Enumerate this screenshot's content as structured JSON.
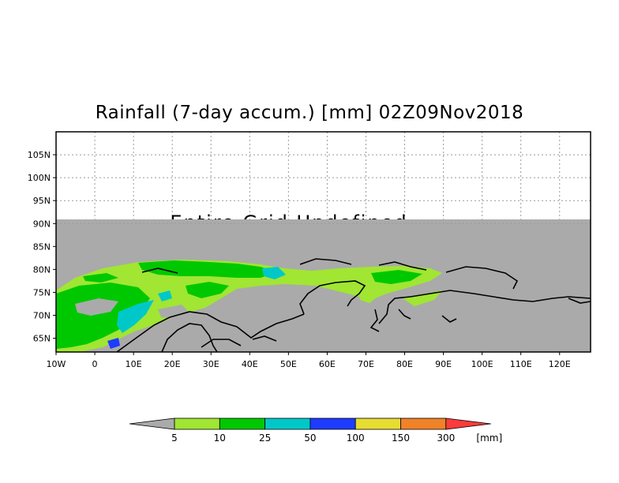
{
  "title": "Rainfall (7-day accum.) [mm] 02Z09Nov2018",
  "overlay_text": "Entire Grid Undefined",
  "map": {
    "lon_range": [
      -10,
      128
    ],
    "lat_range": [
      62,
      110
    ],
    "undefined_above_lat": 90,
    "lon_ticks": [
      "10W",
      "0",
      "10E",
      "20E",
      "30E",
      "40E",
      "50E",
      "60E",
      "70E",
      "80E",
      "90E",
      "100E",
      "110E",
      "120E"
    ],
    "lat_ticks": [
      "65N",
      "70N",
      "75N",
      "80N",
      "85N",
      "90N",
      "95N",
      "100N",
      "105N"
    ],
    "grid": "dotted",
    "colors": {
      "undefined": "#aaaaaa",
      "light_green": "#a0e632",
      "green": "#00c800",
      "cyan": "#00c8c8",
      "blue": "#1e3cff"
    }
  },
  "colorbar": {
    "labels": [
      "5",
      "10",
      "25",
      "50",
      "100",
      "150",
      "300"
    ],
    "unit": "[mm]",
    "colors": [
      "#aaaaaa",
      "#a0e632",
      "#00c800",
      "#00c8c8",
      "#1e3cff",
      "#e6dc32",
      "#f08228",
      "#fa3c3c"
    ]
  }
}
